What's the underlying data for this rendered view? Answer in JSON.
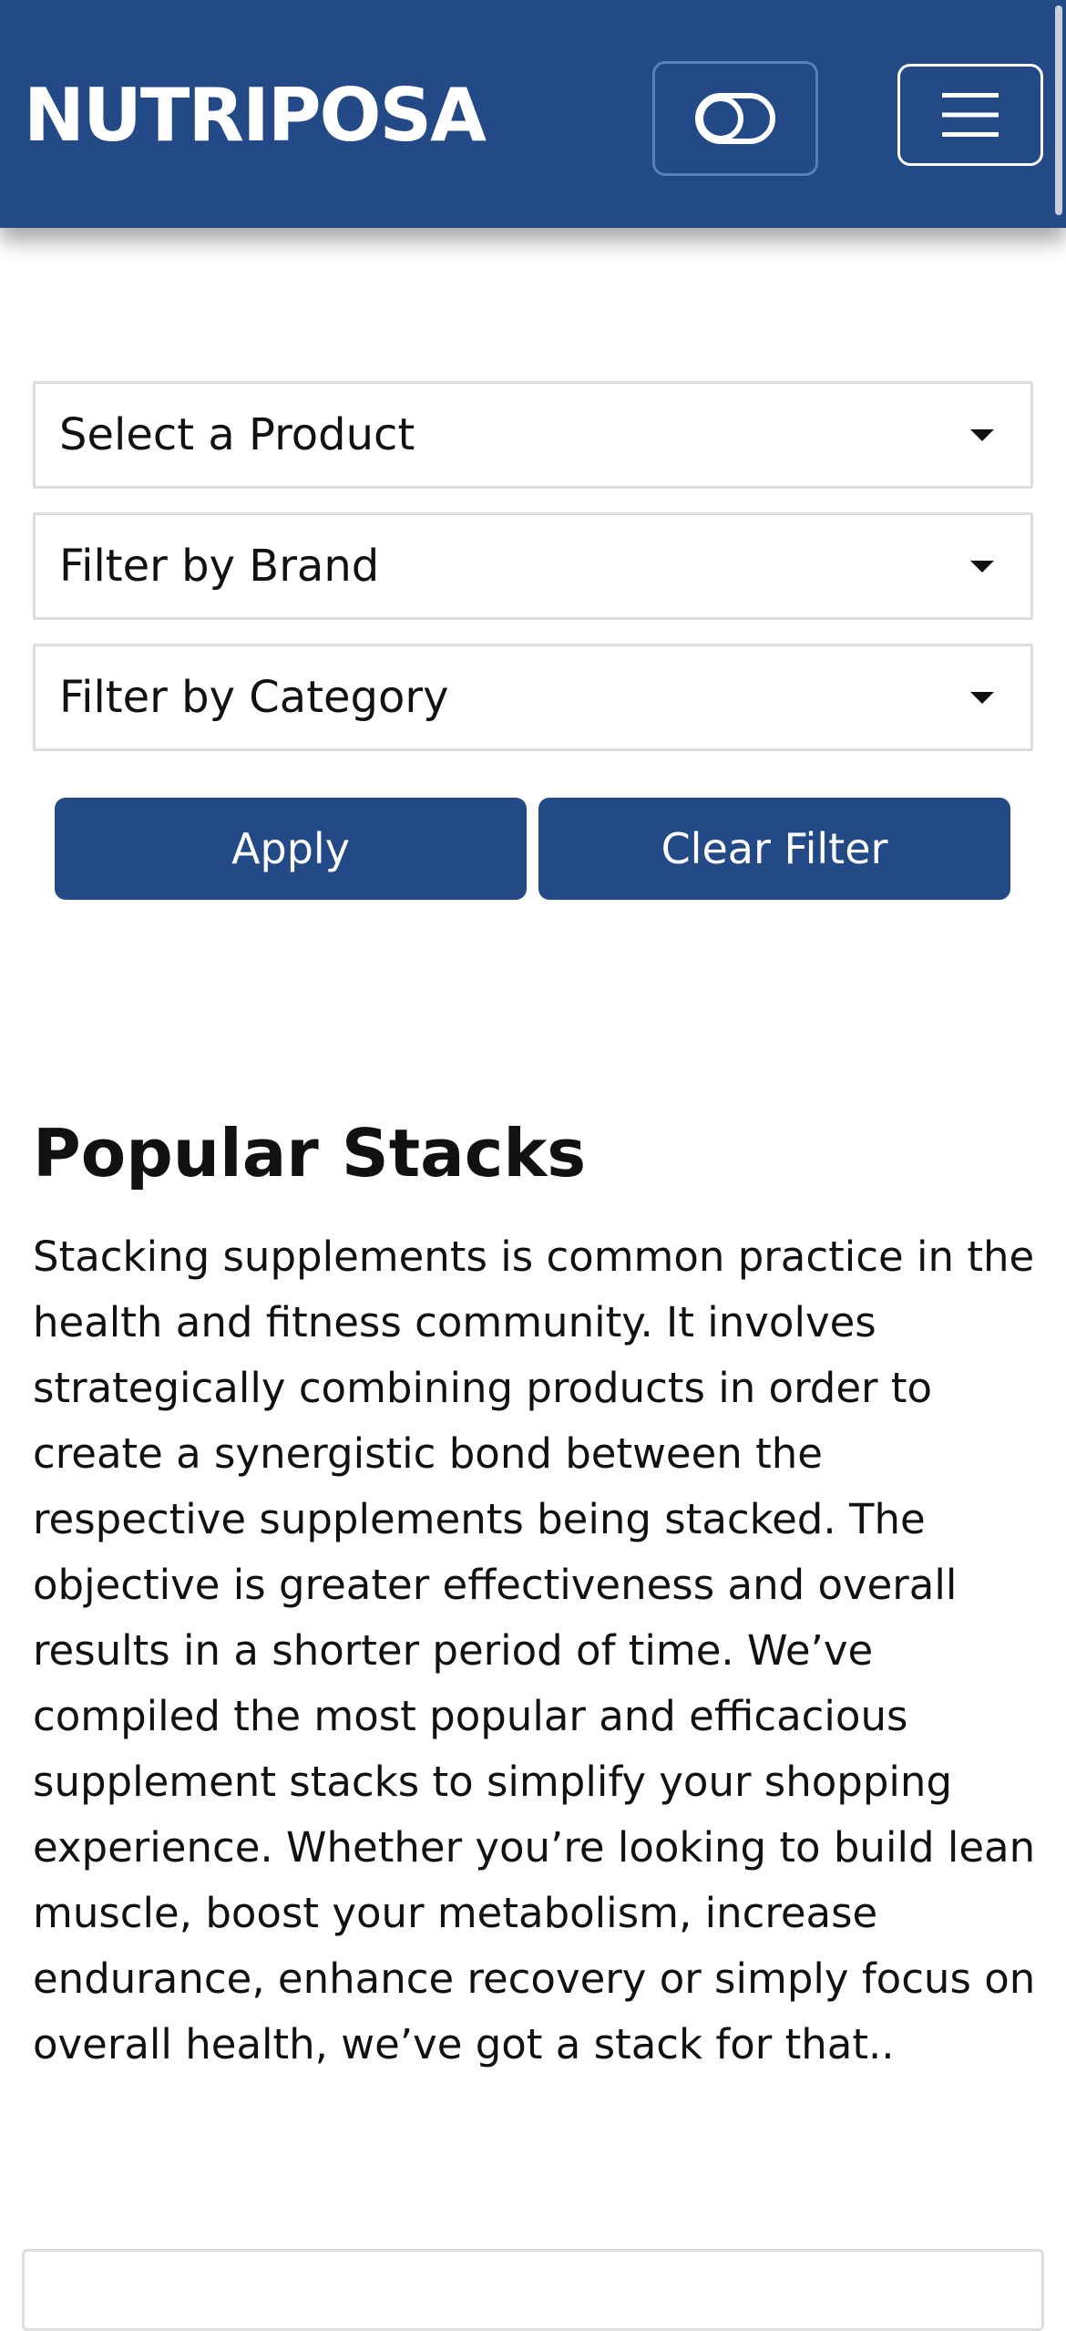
{
  "header": {
    "brand": "NUTRIPOSA",
    "theme_toggle_icon": "toggle-icon",
    "menu_icon": "hamburger-menu-icon",
    "background_color": "#234A86"
  },
  "filters": {
    "product_select": "Select a Product",
    "brand_select": "Filter by Brand",
    "category_select": "Filter by Category",
    "apply_label": "Apply",
    "clear_label": "Clear Filter",
    "button_color": "#234A86"
  },
  "popular_stacks": {
    "title": "Popular Stacks",
    "description": "Stacking supplements is common practice in the health and fitness community. It involves strategically combining products in order to create a synergistic bond between the respective supplements being stacked. The objective is greater effectiveness and overall results in a shorter period of time. We’ve compiled the most popular and efficacious supplement stacks to simplify your shopping experience. Whether you’re looking to build lean muscle, boost your metabolism, increase endurance, enhance recovery or simply focus on overall health, we’ve got a stack for that.."
  }
}
